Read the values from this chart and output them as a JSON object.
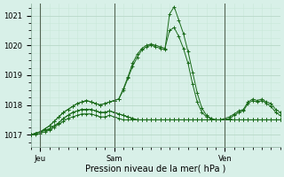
{
  "background_color": "#d8f0e8",
  "grid_color_major": "#b8d8c8",
  "grid_color_minor": "#c8e8d8",
  "line_color": "#1a6b1a",
  "marker": "+",
  "xlabel": "Pression niveau de la mer( hPa )",
  "ylim": [
    1016.6,
    1021.4
  ],
  "yticks": [
    1017,
    1018,
    1019,
    1020,
    1021
  ],
  "xtick_labels": [
    "Jeu",
    "Sam",
    "Ven"
  ],
  "xtick_positions": [
    2,
    18,
    42
  ],
  "vline_positions": [
    2,
    18,
    42
  ],
  "n_points": 55,
  "series": [
    [
      1017.0,
      1017.05,
      1017.1,
      1017.2,
      1017.3,
      1017.45,
      1017.6,
      1017.75,
      1017.85,
      1017.95,
      1018.05,
      1018.1,
      1018.15,
      1018.1,
      1018.05,
      1018.0,
      1018.05,
      1018.1,
      1018.15,
      1018.2,
      1018.5,
      1018.9,
      1019.3,
      1019.6,
      1019.85,
      1019.95,
      1020.0,
      1019.95,
      1019.9,
      1019.85,
      1021.05,
      1021.3,
      1020.85,
      1020.4,
      1019.8,
      1019.1,
      1018.4,
      1017.9,
      1017.65,
      1017.55,
      1017.5,
      1017.5,
      1017.55,
      1017.6,
      1017.7,
      1017.8,
      1017.85,
      1018.1,
      1018.2,
      1018.15,
      1018.2,
      1018.1,
      1018.05,
      1017.85,
      1017.75
    ],
    [
      1017.0,
      1017.05,
      1017.1,
      1017.2,
      1017.3,
      1017.45,
      1017.6,
      1017.75,
      1017.85,
      1017.95,
      1018.05,
      1018.1,
      1018.15,
      1018.1,
      1018.05,
      1018.0,
      1018.05,
      1018.1,
      1018.15,
      1018.2,
      1018.55,
      1018.95,
      1019.4,
      1019.7,
      1019.9,
      1020.0,
      1020.05,
      1020.0,
      1019.95,
      1019.9,
      1020.5,
      1020.6,
      1020.3,
      1019.9,
      1019.4,
      1018.7,
      1018.1,
      1017.75,
      1017.6,
      1017.55,
      1017.5,
      1017.5,
      1017.5,
      1017.55,
      1017.65,
      1017.75,
      1017.8,
      1018.05,
      1018.15,
      1018.1,
      1018.15,
      1018.05,
      1017.95,
      1017.75,
      1017.65
    ],
    [
      1017.0,
      1017.05,
      1017.1,
      1017.15,
      1017.2,
      1017.3,
      1017.4,
      1017.55,
      1017.65,
      1017.75,
      1017.8,
      1017.85,
      1017.85,
      1017.85,
      1017.8,
      1017.75,
      1017.75,
      1017.8,
      1017.75,
      1017.7,
      1017.65,
      1017.6,
      1017.55,
      1017.5,
      1017.5,
      1017.5,
      1017.5,
      1017.5,
      1017.5,
      1017.5,
      1017.5,
      1017.5,
      1017.5,
      1017.5,
      1017.5,
      1017.5,
      1017.5,
      1017.5,
      1017.5,
      1017.5,
      1017.5,
      1017.5,
      1017.5,
      1017.5,
      1017.5,
      1017.5,
      1017.5,
      1017.5,
      1017.5,
      1017.5,
      1017.5,
      1017.5,
      1017.5,
      1017.5,
      1017.5
    ],
    [
      1017.0,
      1017.05,
      1017.1,
      1017.15,
      1017.2,
      1017.3,
      1017.4,
      1017.55,
      1017.65,
      1017.75,
      1017.8,
      1017.85,
      1017.85,
      1017.85,
      1017.8,
      1017.75,
      1017.75,
      1017.8,
      1017.75,
      1017.7,
      1017.65,
      1017.6,
      1017.55,
      1017.5,
      1017.5,
      1017.5,
      1017.5,
      1017.5,
      1017.5,
      1017.5,
      1017.5,
      1017.5,
      1017.5,
      1017.5,
      1017.5,
      1017.5,
      1017.5,
      1017.5,
      1017.5,
      1017.5,
      1017.5,
      1017.5,
      1017.5,
      1017.5,
      1017.5,
      1017.5,
      1017.5,
      1017.5,
      1017.5,
      1017.5,
      1017.5,
      1017.5,
      1017.5,
      1017.5,
      1017.5
    ],
    [
      1017.0,
      1017.0,
      1017.05,
      1017.1,
      1017.15,
      1017.25,
      1017.35,
      1017.45,
      1017.55,
      1017.6,
      1017.65,
      1017.7,
      1017.7,
      1017.7,
      1017.65,
      1017.6,
      1017.6,
      1017.65,
      1017.6,
      1017.55,
      1017.5,
      1017.5,
      1017.5,
      1017.5,
      1017.5,
      1017.5,
      1017.5,
      1017.5,
      1017.5,
      1017.5,
      1017.5,
      1017.5,
      1017.5,
      1017.5,
      1017.5,
      1017.5,
      1017.5,
      1017.5,
      1017.5,
      1017.5,
      1017.5,
      1017.5,
      1017.5,
      1017.5,
      1017.5,
      1017.5,
      1017.5,
      1017.5,
      1017.5,
      1017.5,
      1017.5,
      1017.5,
      1017.5,
      1017.5,
      1017.5
    ]
  ]
}
